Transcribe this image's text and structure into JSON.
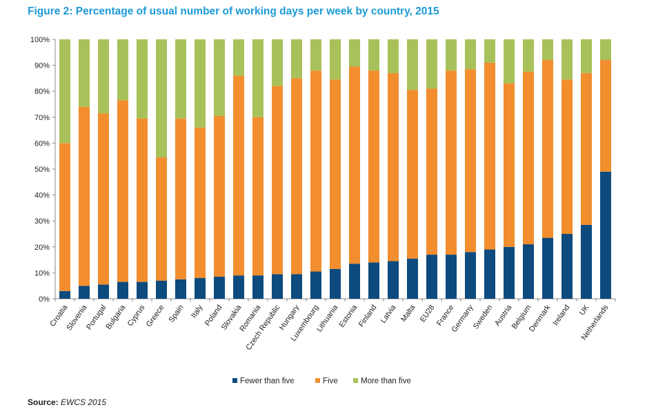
{
  "title": "Figure 2: Percentage of usual number of working days per week by country, 2015",
  "source_label": "Source:",
  "source_value": "EWCS 2015",
  "chart_data": {
    "type": "bar",
    "stacked": true,
    "title": "Figure 2: Percentage of usual number of working days per week by country, 2015",
    "xlabel": "",
    "ylabel": "",
    "ylim": [
      0,
      100
    ],
    "yticks": [
      "0%",
      "10%",
      "20%",
      "30%",
      "40%",
      "50%",
      "60%",
      "70%",
      "80%",
      "90%",
      "100%"
    ],
    "grid": false,
    "legend_position": "bottom",
    "categories": [
      "Croatia",
      "Slovenia",
      "Portugal",
      "Bulgaria",
      "Cyprus",
      "Greece",
      "Spain",
      "Italy",
      "Poland",
      "Slovakia",
      "Romania",
      "Czech Republic",
      "Hungary",
      "Luxembourg",
      "Lithuania",
      "Estonia",
      "Finland",
      "Latvia",
      "Malta",
      "EU28",
      "France",
      "Germany",
      "Sweden",
      "Austria",
      "Belgium",
      "Denmark",
      "Ireland",
      "UK",
      "Netherlands"
    ],
    "series": [
      {
        "name": "Fewer than five",
        "color": "#0d4a7e",
        "values": [
          3,
          5,
          5.5,
          6.5,
          6.5,
          7,
          7.5,
          8,
          8.5,
          9,
          9,
          9.5,
          9.5,
          10.5,
          11.5,
          13.5,
          14,
          14.5,
          15.5,
          17,
          17,
          18,
          19,
          20,
          21,
          23.5,
          25,
          28.5,
          49
        ]
      },
      {
        "name": "Five",
        "color": "#f28e2e",
        "values": [
          57,
          69,
          66,
          70,
          63,
          47.5,
          62,
          58,
          62,
          77,
          61,
          72.5,
          75.5,
          77.5,
          73,
          76,
          74,
          72.5,
          65,
          64,
          71,
          70.5,
          72,
          63,
          66.5,
          68.5,
          59.5,
          58.5,
          43
        ]
      },
      {
        "name": "More than five",
        "color": "#a9c15a",
        "values": [
          40,
          26,
          28.5,
          23.5,
          30.5,
          45.5,
          30.5,
          34,
          29.5,
          14,
          30,
          18,
          15,
          12,
          15.5,
          10.5,
          12,
          13,
          19.5,
          19,
          12,
          11.5,
          9,
          17,
          12.5,
          8,
          15.5,
          13,
          8
        ]
      }
    ]
  }
}
